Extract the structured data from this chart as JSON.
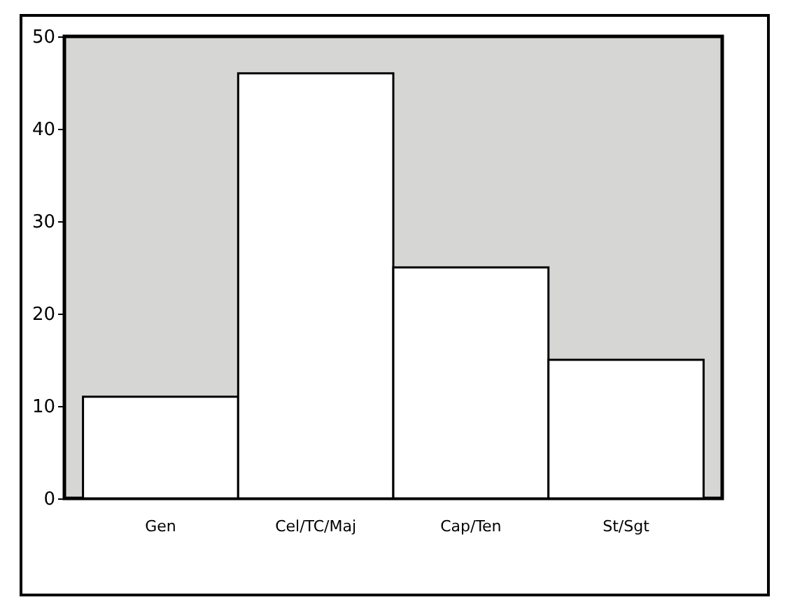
{
  "chart_data": {
    "type": "bar",
    "categories": [
      "Gen",
      "Cel/TC/Maj",
      "Cap/Ten",
      "St/Sgt"
    ],
    "values": [
      11,
      46,
      25,
      15
    ],
    "color": "#ffffff",
    "ylim": [
      0,
      50
    ],
    "yticks": [
      0,
      10,
      20,
      30,
      40,
      50
    ]
  }
}
